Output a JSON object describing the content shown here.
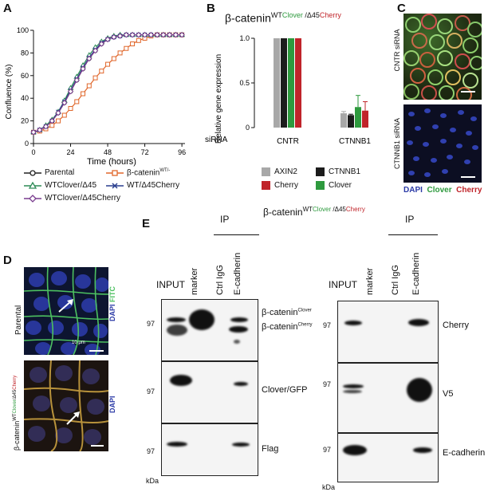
{
  "panels": {
    "A": "A",
    "B": "B",
    "C": "C",
    "D": "D",
    "E": "E"
  },
  "panelA": {
    "chart_data": {
      "type": "line",
      "xlabel": "Time (hours)",
      "ylabel": "Confluence (%)",
      "xlim": [
        0,
        98
      ],
      "ylim": [
        0,
        100
      ],
      "x_ticks": [
        "0",
        "24",
        "48",
        "72",
        "96"
      ],
      "y_ticks": [
        "0",
        "20",
        "40",
        "60",
        "80",
        "100"
      ],
      "x": [
        0,
        4,
        8,
        12,
        16,
        20,
        24,
        28,
        32,
        36,
        40,
        44,
        48,
        52,
        56,
        60,
        64,
        68,
        72,
        76,
        80,
        84,
        88,
        92,
        96
      ],
      "series": [
        {
          "name": "Parental",
          "color": "#222222",
          "marker": "circle",
          "values": [
            10,
            12,
            15,
            20,
            27,
            36,
            46,
            56,
            66,
            75,
            82,
            88,
            92,
            94,
            95,
            96,
            96,
            96,
            96,
            96,
            96,
            96,
            96,
            96,
            96
          ]
        },
        {
          "name": "β-cateninWT/-",
          "color": "#e0662a",
          "marker": "square",
          "values": [
            10,
            11,
            13,
            16,
            20,
            25,
            31,
            37,
            44,
            51,
            58,
            64,
            70,
            75,
            80,
            84,
            88,
            91,
            93,
            95,
            96,
            96,
            96,
            96,
            96
          ]
        },
        {
          "name": "WTClover/Δ45",
          "color": "#2e8b57",
          "marker": "triangle",
          "values": [
            10,
            12,
            16,
            21,
            28,
            38,
            49,
            59,
            69,
            78,
            85,
            90,
            93,
            95,
            96,
            96,
            96,
            96,
            96,
            96,
            96,
            96,
            96,
            96,
            96
          ]
        },
        {
          "name": "WT/Δ45Cherry",
          "color": "#2a3f8f",
          "marker": "x",
          "values": [
            10,
            12,
            15,
            20,
            28,
            37,
            47,
            57,
            67,
            76,
            83,
            89,
            92,
            94,
            95,
            96,
            96,
            96,
            96,
            96,
            96,
            96,
            96,
            96,
            96
          ]
        },
        {
          "name": "WTClover/Δ45Cherry",
          "color": "#7a3d8f",
          "marker": "diamond",
          "values": [
            10,
            12,
            15,
            20,
            27,
            36,
            46,
            56,
            66,
            75,
            82,
            88,
            92,
            94,
            95,
            96,
            96,
            96,
            96,
            96,
            96,
            96,
            96,
            96,
            96
          ]
        }
      ]
    },
    "legend": [
      {
        "label": "Parental",
        "sup": ""
      },
      {
        "label": "β-catenin",
        "sup": "WT/-"
      },
      {
        "label": "WTClover/Δ45",
        "sup": ""
      },
      {
        "label": "WT/Δ45Cherry",
        "sup": ""
      },
      {
        "label": "WTClover/Δ45Cherry",
        "sup": ""
      }
    ]
  },
  "panelB": {
    "title_main": "β-catenin",
    "title_sup_wt": "WT",
    "title_sup_clover": "Clover",
    "title_sup_sep": " /Δ45",
    "title_sup_cherry": "Cherry",
    "chart_data": {
      "type": "bar",
      "ylabel": "Relative gene expression",
      "xlabel_prefix": "siRNA",
      "categories": [
        "CNTR",
        "CTNNB1"
      ],
      "ylim": [
        0,
        1.0
      ],
      "y_ticks": [
        "0",
        "0.5",
        "1.0"
      ],
      "series": [
        {
          "name": "AXIN2",
          "color": "#a8a8a8",
          "values": [
            1.0,
            0.16
          ],
          "err": [
            0,
            0.02
          ]
        },
        {
          "name": "CTNNB1",
          "color": "#1c1c1c",
          "values": [
            1.0,
            0.14
          ],
          "err": [
            0,
            0.01
          ]
        },
        {
          "name": "Clover",
          "color": "#2e9a3e",
          "values": [
            1.0,
            0.23
          ],
          "err": [
            0,
            0.13
          ]
        },
        {
          "name": "Cherry",
          "color": "#c0242a",
          "values": [
            1.0,
            0.19
          ],
          "err": [
            0,
            0.1
          ]
        }
      ]
    },
    "legend_order": [
      "AXIN2",
      "CTNNB1",
      "Cherry",
      "Clover"
    ]
  },
  "panelC": {
    "top_label": "CNTR siRNA",
    "bottom_label": "CTNNB1 siRNA",
    "legend": {
      "dapi": "DAPI",
      "clover": "Clover",
      "cherry": "Cherry"
    },
    "colors": {
      "dapi": "#2b3aa6",
      "clover": "#2e9a3e",
      "cherry": "#c0242a"
    }
  },
  "panelD": {
    "top_label": "Parental",
    "top_stain_dapi": "DAPI",
    "top_stain_fitc": "FITC",
    "scale": "10 μm",
    "bottom_label_main": "β-catenin",
    "bottom_label_sup_wt": "WT",
    "bottom_label_sup_clover": "Clover",
    "bottom_label_sup_sep": "/Δ45",
    "bottom_label_sup_cherry": "Cherry",
    "bottom_stain_dapi": "DAPI"
  },
  "panelE": {
    "title_main": "β-catenin",
    "title_sup_wt": "WT",
    "title_sup_clover": "Clover",
    "title_sup_sep": " /Δ45",
    "title_sup_cherry": "Cherry",
    "ip_label": "IP",
    "lanes_left": [
      "INPUT",
      "marker",
      "Ctrl IgG",
      "E-cadherin"
    ],
    "lanes_right": [
      "INPUT",
      "marker",
      "Ctrl IgG",
      "E-cadherin"
    ],
    "marker_97": "97",
    "kda": "kDa",
    "left_labels": {
      "bcat_main": "β-catenin",
      "bcat_clover": "Clover",
      "bcat_cherry": "Cherry",
      "clover_gfp": "Clover/GFP",
      "flag": "Flag"
    },
    "right_labels": {
      "cherry": "Cherry",
      "v5": "V5",
      "ecad": "E-cadherin"
    }
  }
}
